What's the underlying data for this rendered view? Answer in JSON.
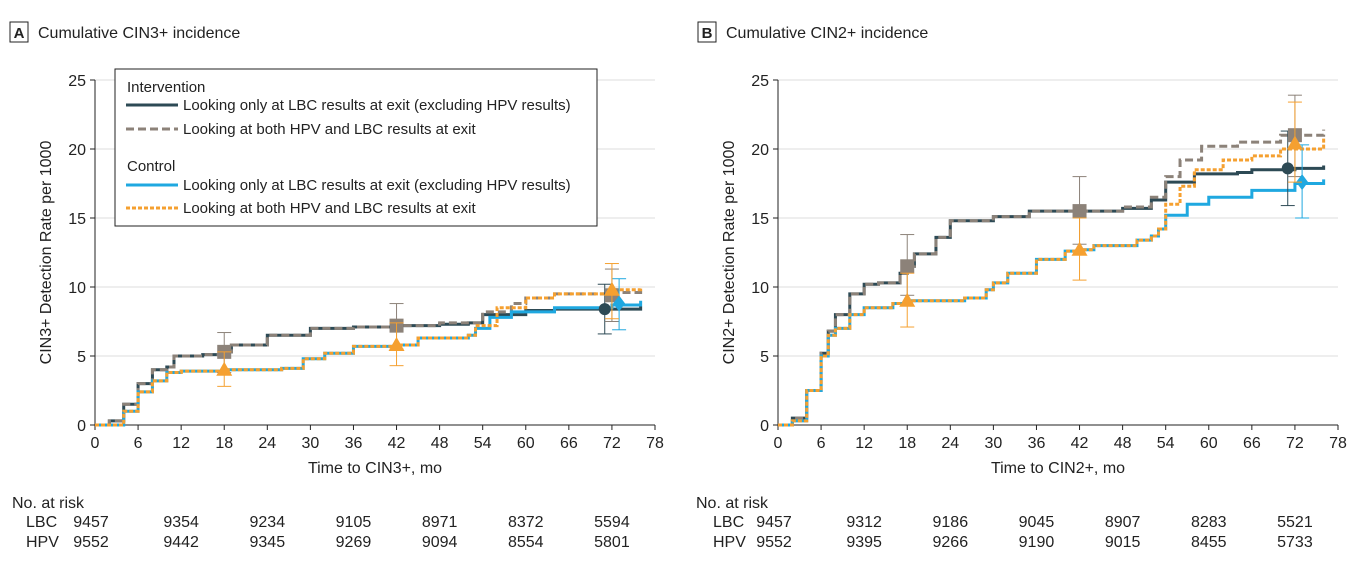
{
  "colors": {
    "intervention_lbc": "#2d4a55",
    "intervention_hpv_lbc": "#8c8279",
    "control_lbc": "#1fa8e0",
    "control_hpv_lbc": "#f5a030"
  },
  "legend": {
    "group1": "Intervention",
    "group1_lbc": "Looking only at LBC results at exit (excluding HPV results)",
    "group1_hpv": "Looking at both HPV and LBC results at exit",
    "group2": "Control",
    "group2_lbc": "Looking only at LBC results at exit (excluding HPV results)",
    "group2_hpv": "Looking at both HPV and LBC results at exit"
  },
  "chart_data": [
    {
      "type": "line",
      "panel_letter": "A",
      "title": "Cumulative CIN3+ incidence",
      "xlabel": "Time to CIN3+, mo",
      "ylabel": "CIN3+ Detection Rate per 1000",
      "xlim": [
        0,
        78
      ],
      "ylim": [
        0,
        25
      ],
      "xticks": [
        0,
        6,
        12,
        18,
        24,
        30,
        36,
        42,
        48,
        54,
        60,
        66,
        72,
        78
      ],
      "yticks": [
        0,
        5,
        10,
        15,
        20,
        25
      ],
      "grid": "horizontal",
      "legend_position": "top-left",
      "series": [
        {
          "key": "intervention_lbc",
          "points": [
            [
              0,
              0
            ],
            [
              1,
              0
            ],
            [
              2,
              0.3
            ],
            [
              4,
              1.5
            ],
            [
              6,
              3
            ],
            [
              8,
              4
            ],
            [
              10,
              4.2
            ],
            [
              11,
              5
            ],
            [
              15,
              5.1
            ],
            [
              18,
              5.3
            ],
            [
              19,
              5.8
            ],
            [
              24,
              6.5
            ],
            [
              30,
              7
            ],
            [
              36,
              7.1
            ],
            [
              42,
              7.2
            ],
            [
              48,
              7.3
            ],
            [
              52,
              7.4
            ],
            [
              54,
              8
            ],
            [
              60,
              8.3
            ],
            [
              64,
              8.4
            ],
            [
              72,
              8.4
            ],
            [
              76,
              8.6
            ]
          ],
          "marker": "circle",
          "markers": [
            {
              "x": 71,
              "y": 8.4,
              "lo": 6.6,
              "hi": 10.2
            }
          ]
        },
        {
          "key": "intervention_hpv_lbc",
          "dashed": true,
          "points": [
            [
              0,
              0
            ],
            [
              1,
              0
            ],
            [
              2,
              0.3
            ],
            [
              4,
              1.5
            ],
            [
              6,
              3
            ],
            [
              8,
              4
            ],
            [
              10,
              4.2
            ],
            [
              11,
              5
            ],
            [
              15,
              5.1
            ],
            [
              18,
              5.3
            ],
            [
              19,
              5.8
            ],
            [
              24,
              6.5
            ],
            [
              30,
              7
            ],
            [
              36,
              7.1
            ],
            [
              42,
              7.2
            ],
            [
              48,
              7.4
            ],
            [
              54,
              8.2
            ],
            [
              58,
              8.8
            ],
            [
              60,
              9.2
            ],
            [
              64,
              9.5
            ],
            [
              72,
              9.6
            ],
            [
              76,
              9.8
            ]
          ],
          "marker": "square",
          "markers": [
            {
              "x": 18,
              "y": 5.3,
              "lo": 3.8,
              "hi": 6.7
            },
            {
              "x": 42,
              "y": 7.2,
              "lo": 5.5,
              "hi": 8.8
            },
            {
              "x": 72,
              "y": 9.4,
              "lo": 7.5,
              "hi": 11.3
            }
          ]
        },
        {
          "key": "control_lbc",
          "points": [
            [
              0,
              0
            ],
            [
              2,
              0
            ],
            [
              4,
              1
            ],
            [
              6,
              2.4
            ],
            [
              8,
              3.2
            ],
            [
              10,
              3.8
            ],
            [
              12,
              3.9
            ],
            [
              18,
              4
            ],
            [
              26,
              4.1
            ],
            [
              29,
              4.8
            ],
            [
              32,
              5.2
            ],
            [
              36,
              5.7
            ],
            [
              42,
              5.8
            ],
            [
              45,
              6.3
            ],
            [
              52,
              6.5
            ],
            [
              53,
              7
            ],
            [
              55,
              7.8
            ],
            [
              58,
              8.2
            ],
            [
              64,
              8.5
            ],
            [
              72,
              8.7
            ],
            [
              76,
              9
            ]
          ],
          "marker": "diamond",
          "markers": [
            {
              "x": 73,
              "y": 8.8,
              "lo": 6.9,
              "hi": 10.6
            }
          ]
        },
        {
          "key": "control_hpv_lbc",
          "dashed": true,
          "points": [
            [
              0,
              0
            ],
            [
              2,
              0
            ],
            [
              4,
              1
            ],
            [
              6,
              2.4
            ],
            [
              8,
              3.2
            ],
            [
              10,
              3.8
            ],
            [
              12,
              3.9
            ],
            [
              18,
              4
            ],
            [
              26,
              4.1
            ],
            [
              29,
              4.8
            ],
            [
              32,
              5.2
            ],
            [
              36,
              5.7
            ],
            [
              42,
              5.8
            ],
            [
              45,
              6.3
            ],
            [
              52,
              6.5
            ],
            [
              53,
              7.2
            ],
            [
              56,
              8.5
            ],
            [
              60,
              9.2
            ],
            [
              64,
              9.5
            ],
            [
              72,
              9.8
            ],
            [
              76,
              10
            ]
          ],
          "marker": "triangle",
          "markers": [
            {
              "x": 18,
              "y": 4.0,
              "lo": 2.8,
              "hi": 5.3
            },
            {
              "x": 42,
              "y": 5.8,
              "lo": 4.3,
              "hi": 7.4
            },
            {
              "x": 72,
              "y": 9.8,
              "lo": 7.7,
              "hi": 11.7
            }
          ]
        }
      ],
      "risk_table": {
        "title": "No. at risk",
        "rows": [
          {
            "label": "LBC",
            "values": [
              "9457",
              "9354",
              "9234",
              "9105",
              "8971",
              "8372",
              "5594"
            ]
          },
          {
            "label": "HPV",
            "values": [
              "9552",
              "9442",
              "9345",
              "9269",
              "9094",
              "8554",
              "5801"
            ]
          }
        ]
      }
    },
    {
      "type": "line",
      "panel_letter": "B",
      "title": "Cumulative CIN2+ incidence",
      "xlabel": "Time to CIN2+, mo",
      "ylabel": "CIN2+ Detection Rate per 1000",
      "xlim": [
        0,
        78
      ],
      "ylim": [
        0,
        25
      ],
      "xticks": [
        0,
        6,
        12,
        18,
        24,
        30,
        36,
        42,
        48,
        54,
        60,
        66,
        72,
        78
      ],
      "yticks": [
        0,
        5,
        10,
        15,
        20,
        25
      ],
      "grid": "horizontal",
      "series": [
        {
          "key": "intervention_lbc",
          "points": [
            [
              0,
              0
            ],
            [
              1,
              0
            ],
            [
              2,
              0.5
            ],
            [
              4,
              2.5
            ],
            [
              6,
              5.2
            ],
            [
              7,
              6.8
            ],
            [
              8,
              8
            ],
            [
              10,
              9.5
            ],
            [
              12,
              10.2
            ],
            [
              14,
              10.3
            ],
            [
              17,
              11
            ],
            [
              18,
              11.5
            ],
            [
              19,
              12.4
            ],
            [
              22,
              13.6
            ],
            [
              24,
              14.8
            ],
            [
              30,
              15.1
            ],
            [
              35,
              15.5
            ],
            [
              42,
              15.5
            ],
            [
              48,
              15.7
            ],
            [
              52,
              16.3
            ],
            [
              54,
              17.6
            ],
            [
              58,
              18.2
            ],
            [
              64,
              18.3
            ],
            [
              66,
              18.5
            ],
            [
              72,
              18.6
            ],
            [
              76,
              18.8
            ]
          ],
          "marker": "circle",
          "markers": [
            {
              "x": 71,
              "y": 18.6,
              "lo": 15.9,
              "hi": 21.3
            }
          ]
        },
        {
          "key": "intervention_hpv_lbc",
          "dashed": true,
          "points": [
            [
              0,
              0
            ],
            [
              1,
              0
            ],
            [
              2,
              0.5
            ],
            [
              4,
              2.5
            ],
            [
              6,
              5.2
            ],
            [
              7,
              6.8
            ],
            [
              8,
              8
            ],
            [
              10,
              9.5
            ],
            [
              12,
              10.2
            ],
            [
              14,
              10.3
            ],
            [
              17,
              11
            ],
            [
              18,
              11.5
            ],
            [
              19,
              12.4
            ],
            [
              22,
              13.6
            ],
            [
              24,
              14.8
            ],
            [
              30,
              15.1
            ],
            [
              35,
              15.5
            ],
            [
              42,
              15.5
            ],
            [
              48,
              15.8
            ],
            [
              52,
              16.5
            ],
            [
              54,
              18
            ],
            [
              56,
              19.2
            ],
            [
              59,
              20.2
            ],
            [
              64,
              20.5
            ],
            [
              70,
              21
            ],
            [
              76,
              21.4
            ]
          ],
          "marker": "square",
          "markers": [
            {
              "x": 18,
              "y": 11.5,
              "lo": 9.4,
              "hi": 13.8
            },
            {
              "x": 42,
              "y": 15.5,
              "lo": 13.1,
              "hi": 18
            },
            {
              "x": 72,
              "y": 21,
              "lo": 18,
              "hi": 23.9
            }
          ]
        },
        {
          "key": "control_lbc",
          "points": [
            [
              0,
              0
            ],
            [
              2,
              0.3
            ],
            [
              4,
              2.5
            ],
            [
              6,
              5
            ],
            [
              7,
              6.5
            ],
            [
              8,
              7
            ],
            [
              10,
              8
            ],
            [
              12,
              8.5
            ],
            [
              16,
              8.8
            ],
            [
              18,
              9
            ],
            [
              26,
              9.2
            ],
            [
              29,
              9.8
            ],
            [
              30,
              10.3
            ],
            [
              32,
              11
            ],
            [
              36,
              12
            ],
            [
              40,
              12.6
            ],
            [
              42,
              12.7
            ],
            [
              44,
              13
            ],
            [
              50,
              13.4
            ],
            [
              52,
              13.7
            ],
            [
              53,
              14.2
            ],
            [
              54,
              15.2
            ],
            [
              57,
              16
            ],
            [
              60,
              16.5
            ],
            [
              66,
              17
            ],
            [
              70,
              17
            ],
            [
              72,
              17.5
            ],
            [
              76,
              17.8
            ]
          ],
          "marker": "diamond",
          "markers": [
            {
              "x": 73,
              "y": 17.6,
              "lo": 15,
              "hi": 20.3
            }
          ]
        },
        {
          "key": "control_hpv_lbc",
          "dashed": true,
          "points": [
            [
              0,
              0
            ],
            [
              2,
              0.3
            ],
            [
              4,
              2.5
            ],
            [
              6,
              5
            ],
            [
              7,
              6.5
            ],
            [
              8,
              7
            ],
            [
              10,
              8
            ],
            [
              12,
              8.5
            ],
            [
              16,
              8.8
            ],
            [
              18,
              9
            ],
            [
              26,
              9.2
            ],
            [
              29,
              9.8
            ],
            [
              30,
              10.3
            ],
            [
              32,
              11
            ],
            [
              36,
              12
            ],
            [
              40,
              12.6
            ],
            [
              42,
              12.7
            ],
            [
              44,
              13
            ],
            [
              50,
              13.4
            ],
            [
              52,
              13.7
            ],
            [
              53,
              14.2
            ],
            [
              54,
              16
            ],
            [
              56,
              17.3
            ],
            [
              58,
              18.5
            ],
            [
              62,
              19.2
            ],
            [
              66,
              19.5
            ],
            [
              70,
              20
            ],
            [
              76,
              20.9
            ]
          ],
          "marker": "triangle",
          "markers": [
            {
              "x": 18,
              "y": 9,
              "lo": 7.1,
              "hi": 11
            },
            {
              "x": 42,
              "y": 12.7,
              "lo": 10.5,
              "hi": 15
            },
            {
              "x": 72,
              "y": 20.4,
              "lo": 17.6,
              "hi": 23.4
            }
          ]
        }
      ],
      "risk_table": {
        "title": "No. at risk",
        "rows": [
          {
            "label": "LBC",
            "values": [
              "9457",
              "9312",
              "9186",
              "9045",
              "8907",
              "8283",
              "5521"
            ]
          },
          {
            "label": "HPV",
            "values": [
              "9552",
              "9395",
              "9266",
              "9190",
              "9015",
              "8455",
              "5733"
            ]
          }
        ]
      }
    }
  ]
}
